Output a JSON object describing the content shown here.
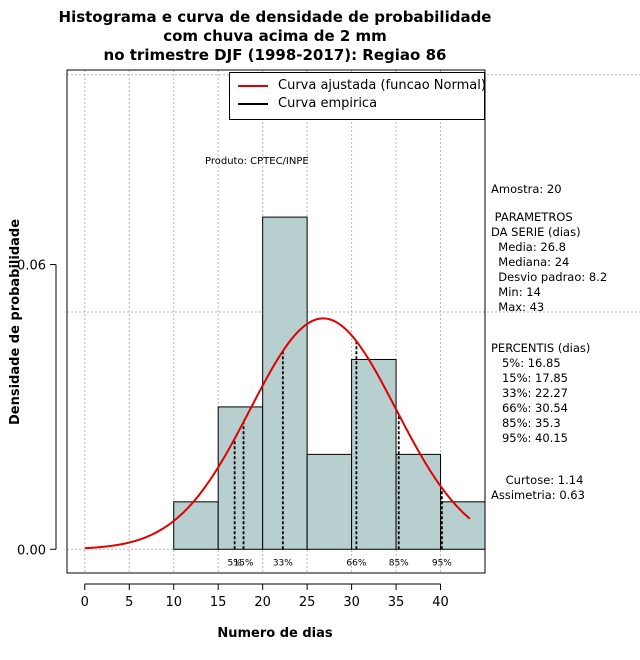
{
  "chart_data": {
    "type": "bar",
    "title": [
      "Histograma e curva de densidade de probabilidade",
      "com chuva acima de 2 mm",
      "no trimestre DJF (1998-2017): Regiao 86"
    ],
    "xlabel": "Numero de dias",
    "ylabel": "Densidade de probabilidade",
    "xlim": [
      -2,
      45
    ],
    "ylim": [
      -0.005,
      0.101
    ],
    "x_ticks": [
      0,
      5,
      10,
      15,
      20,
      25,
      30,
      35,
      40
    ],
    "y_ticks": [
      0.0,
      0.06
    ],
    "y_tick_labels": [
      "0.00",
      "0.06"
    ],
    "bins": [
      {
        "start": 10,
        "end": 15,
        "density": 0.01
      },
      {
        "start": 15,
        "end": 20,
        "density": 0.03
      },
      {
        "start": 20,
        "end": 25,
        "density": 0.07
      },
      {
        "start": 25,
        "end": 30,
        "density": 0.02
      },
      {
        "start": 30,
        "end": 35,
        "density": 0.04
      },
      {
        "start": 35,
        "end": 40,
        "density": 0.02
      },
      {
        "start": 40,
        "end": 45,
        "density": 0.01
      }
    ],
    "bar_color": "#b7cfcf",
    "normal_curve": {
      "mean": 26.8,
      "sd": 8.2,
      "x_range": [
        0,
        43.3
      ],
      "color": "#e00000"
    },
    "percentile_lines": [
      {
        "label": "5%",
        "value": 16.85
      },
      {
        "label": "15%",
        "value": 17.85
      },
      {
        "label": "33%",
        "value": 22.27
      },
      {
        "label": "66%",
        "value": 30.54
      },
      {
        "label": "85%",
        "value": 35.3
      },
      {
        "label": "95%",
        "value": 40.15
      }
    ],
    "legend": {
      "position": "top-right",
      "entries": [
        {
          "label": "Curva ajustada (funcao Normal)",
          "color": "#e00000"
        },
        {
          "label": "Curva empirica",
          "color": "#000000"
        }
      ]
    },
    "annotation": "Produto: CPTEC/INPE"
  },
  "stats": {
    "amostra": "Amostra: 20",
    "param_title": " PARAMETROS",
    "param_sub": "DA SERIE (dias)",
    "media": "  Media: 26.8",
    "mediana": "  Mediana: 24",
    "desvio": "  Desvio padrao: 8.2",
    "min": "  Min: 14",
    "max": "  Max: 43",
    "perc_title": "PERCENTIS (dias)",
    "p5": "   5%: 16.85",
    "p15": "   15%: 17.85",
    "p33": "   33%: 22.27",
    "p66": "   66%: 30.54",
    "p85": "   85%: 35.3",
    "p95": "   95%: 40.15",
    "curtose": "    Curtose: 1.14",
    "assimetria": "Assimetria: 0.63"
  }
}
